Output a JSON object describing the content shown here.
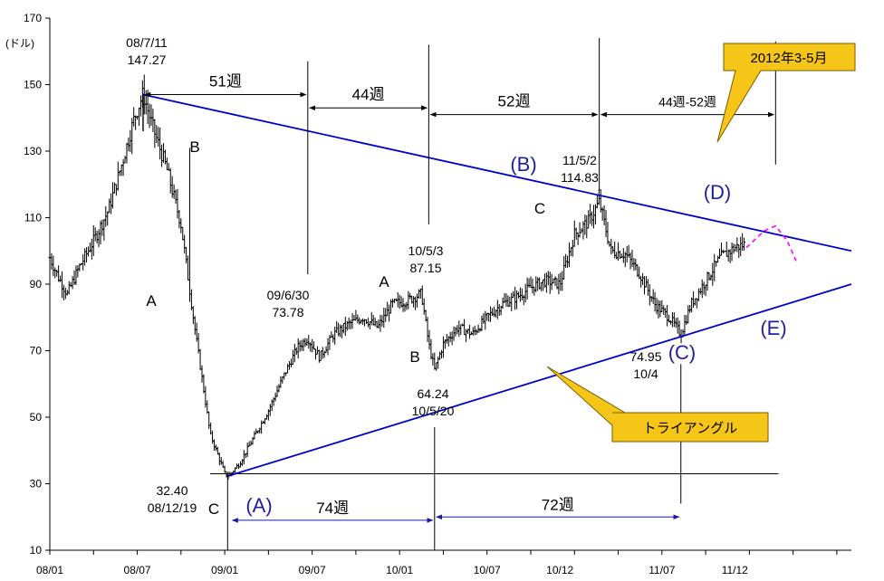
{
  "chart_data": {
    "type": "candlestick",
    "unit_label": "(ドル)",
    "ylim": [
      10,
      170
    ],
    "y_ticks": [
      10,
      30,
      50,
      70,
      90,
      110,
      130,
      150,
      170
    ],
    "x_ticks": [
      "08/01",
      "08/07",
      "09/01",
      "09/07",
      "10/01",
      "10/07",
      "10/12",
      "11/07",
      "11/12"
    ],
    "x_tick_months": [
      0,
      6,
      12,
      18,
      24,
      30,
      35,
      42,
      47
    ],
    "x_range_months": [
      0,
      55
    ],
    "price_path": [
      [
        0.0,
        98
      ],
      [
        0.6,
        92
      ],
      [
        1.2,
        87
      ],
      [
        2.0,
        95
      ],
      [
        3.0,
        103
      ],
      [
        4.0,
        112
      ],
      [
        5.0,
        127
      ],
      [
        5.8,
        140
      ],
      [
        6.4,
        147.27
      ],
      [
        7.0,
        138
      ],
      [
        8.0,
        125
      ],
      [
        9.0,
        108
      ],
      [
        10.0,
        75
      ],
      [
        11.0,
        45
      ],
      [
        12.0,
        33
      ],
      [
        12.3,
        32.4
      ],
      [
        13.0,
        36
      ],
      [
        14.0,
        44
      ],
      [
        15.0,
        52
      ],
      [
        16.0,
        62
      ],
      [
        17.0,
        71
      ],
      [
        17.7,
        73.78
      ],
      [
        18.5,
        68
      ],
      [
        19.5,
        75
      ],
      [
        20.5,
        78
      ],
      [
        21.5,
        80
      ],
      [
        22.5,
        77
      ],
      [
        23.5,
        84
      ],
      [
        24.5,
        85
      ],
      [
        25.5,
        87.15
      ],
      [
        26.0,
        72
      ],
      [
        26.4,
        64.24
      ],
      [
        27.0,
        72
      ],
      [
        28.0,
        77
      ],
      [
        29.0,
        75
      ],
      [
        30.0,
        80
      ],
      [
        31.0,
        84
      ],
      [
        32.0,
        86
      ],
      [
        33.0,
        89
      ],
      [
        34.0,
        91
      ],
      [
        35.0,
        90
      ],
      [
        36.0,
        105
      ],
      [
        37.0,
        109
      ],
      [
        37.7,
        114.83
      ],
      [
        38.5,
        100
      ],
      [
        39.5,
        99
      ],
      [
        40.5,
        93
      ],
      [
        41.5,
        84
      ],
      [
        42.5,
        80
      ],
      [
        43.3,
        74.95
      ],
      [
        44.0,
        84
      ],
      [
        45.0,
        91
      ],
      [
        46.0,
        98
      ],
      [
        47.0,
        101
      ],
      [
        47.7,
        102
      ]
    ],
    "forecast_path": [
      [
        47.8,
        101
      ],
      [
        49.0,
        106
      ],
      [
        49.8,
        107.5
      ],
      [
        50.6,
        103
      ],
      [
        51.2,
        97
      ]
    ],
    "trendlines": [
      {
        "from": [
          6.4,
          147
        ],
        "to": [
          55,
          100
        ]
      },
      {
        "from": [
          12.3,
          32.4
        ],
        "to": [
          55,
          90
        ]
      }
    ],
    "reference_lines": [
      {
        "type": "horizontal",
        "y": 33,
        "from_month": 11,
        "to_month": 50
      }
    ],
    "point_labels": [
      {
        "id": "peak",
        "date": "08/7/11",
        "value": "147.27"
      },
      {
        "id": "bottom",
        "value": "32.40",
        "date": "08/12/19"
      },
      {
        "id": "p0906",
        "date": "09/6/30",
        "value": "73.78"
      },
      {
        "id": "p1005",
        "date": "10/5/3",
        "value": "87.15"
      },
      {
        "id": "p1005b",
        "value": "64.24",
        "date": "10/5/20"
      },
      {
        "id": "p1105",
        "date": "11/5/2",
        "value": "114.83"
      },
      {
        "id": "p1110",
        "value": "74.95",
        "date": "10/4"
      }
    ],
    "wave_labels": [
      "A",
      "B",
      "C",
      "A",
      "B",
      "C",
      "(A)",
      "(B)",
      "(C)",
      "(D)",
      "(E)"
    ],
    "week_intervals": {
      "top": [
        "51週",
        "44週",
        "52週",
        "44週-52週"
      ],
      "bottom": [
        "74週",
        "72週"
      ]
    },
    "callouts": [
      "2012年3-5月",
      "トライアングル"
    ]
  },
  "colors": {
    "price": "#000000",
    "trendline": "#0000cc",
    "forecast": "#ff00ff",
    "wave_label": "#1f1f9f",
    "callout_fill": "#f5c518"
  }
}
